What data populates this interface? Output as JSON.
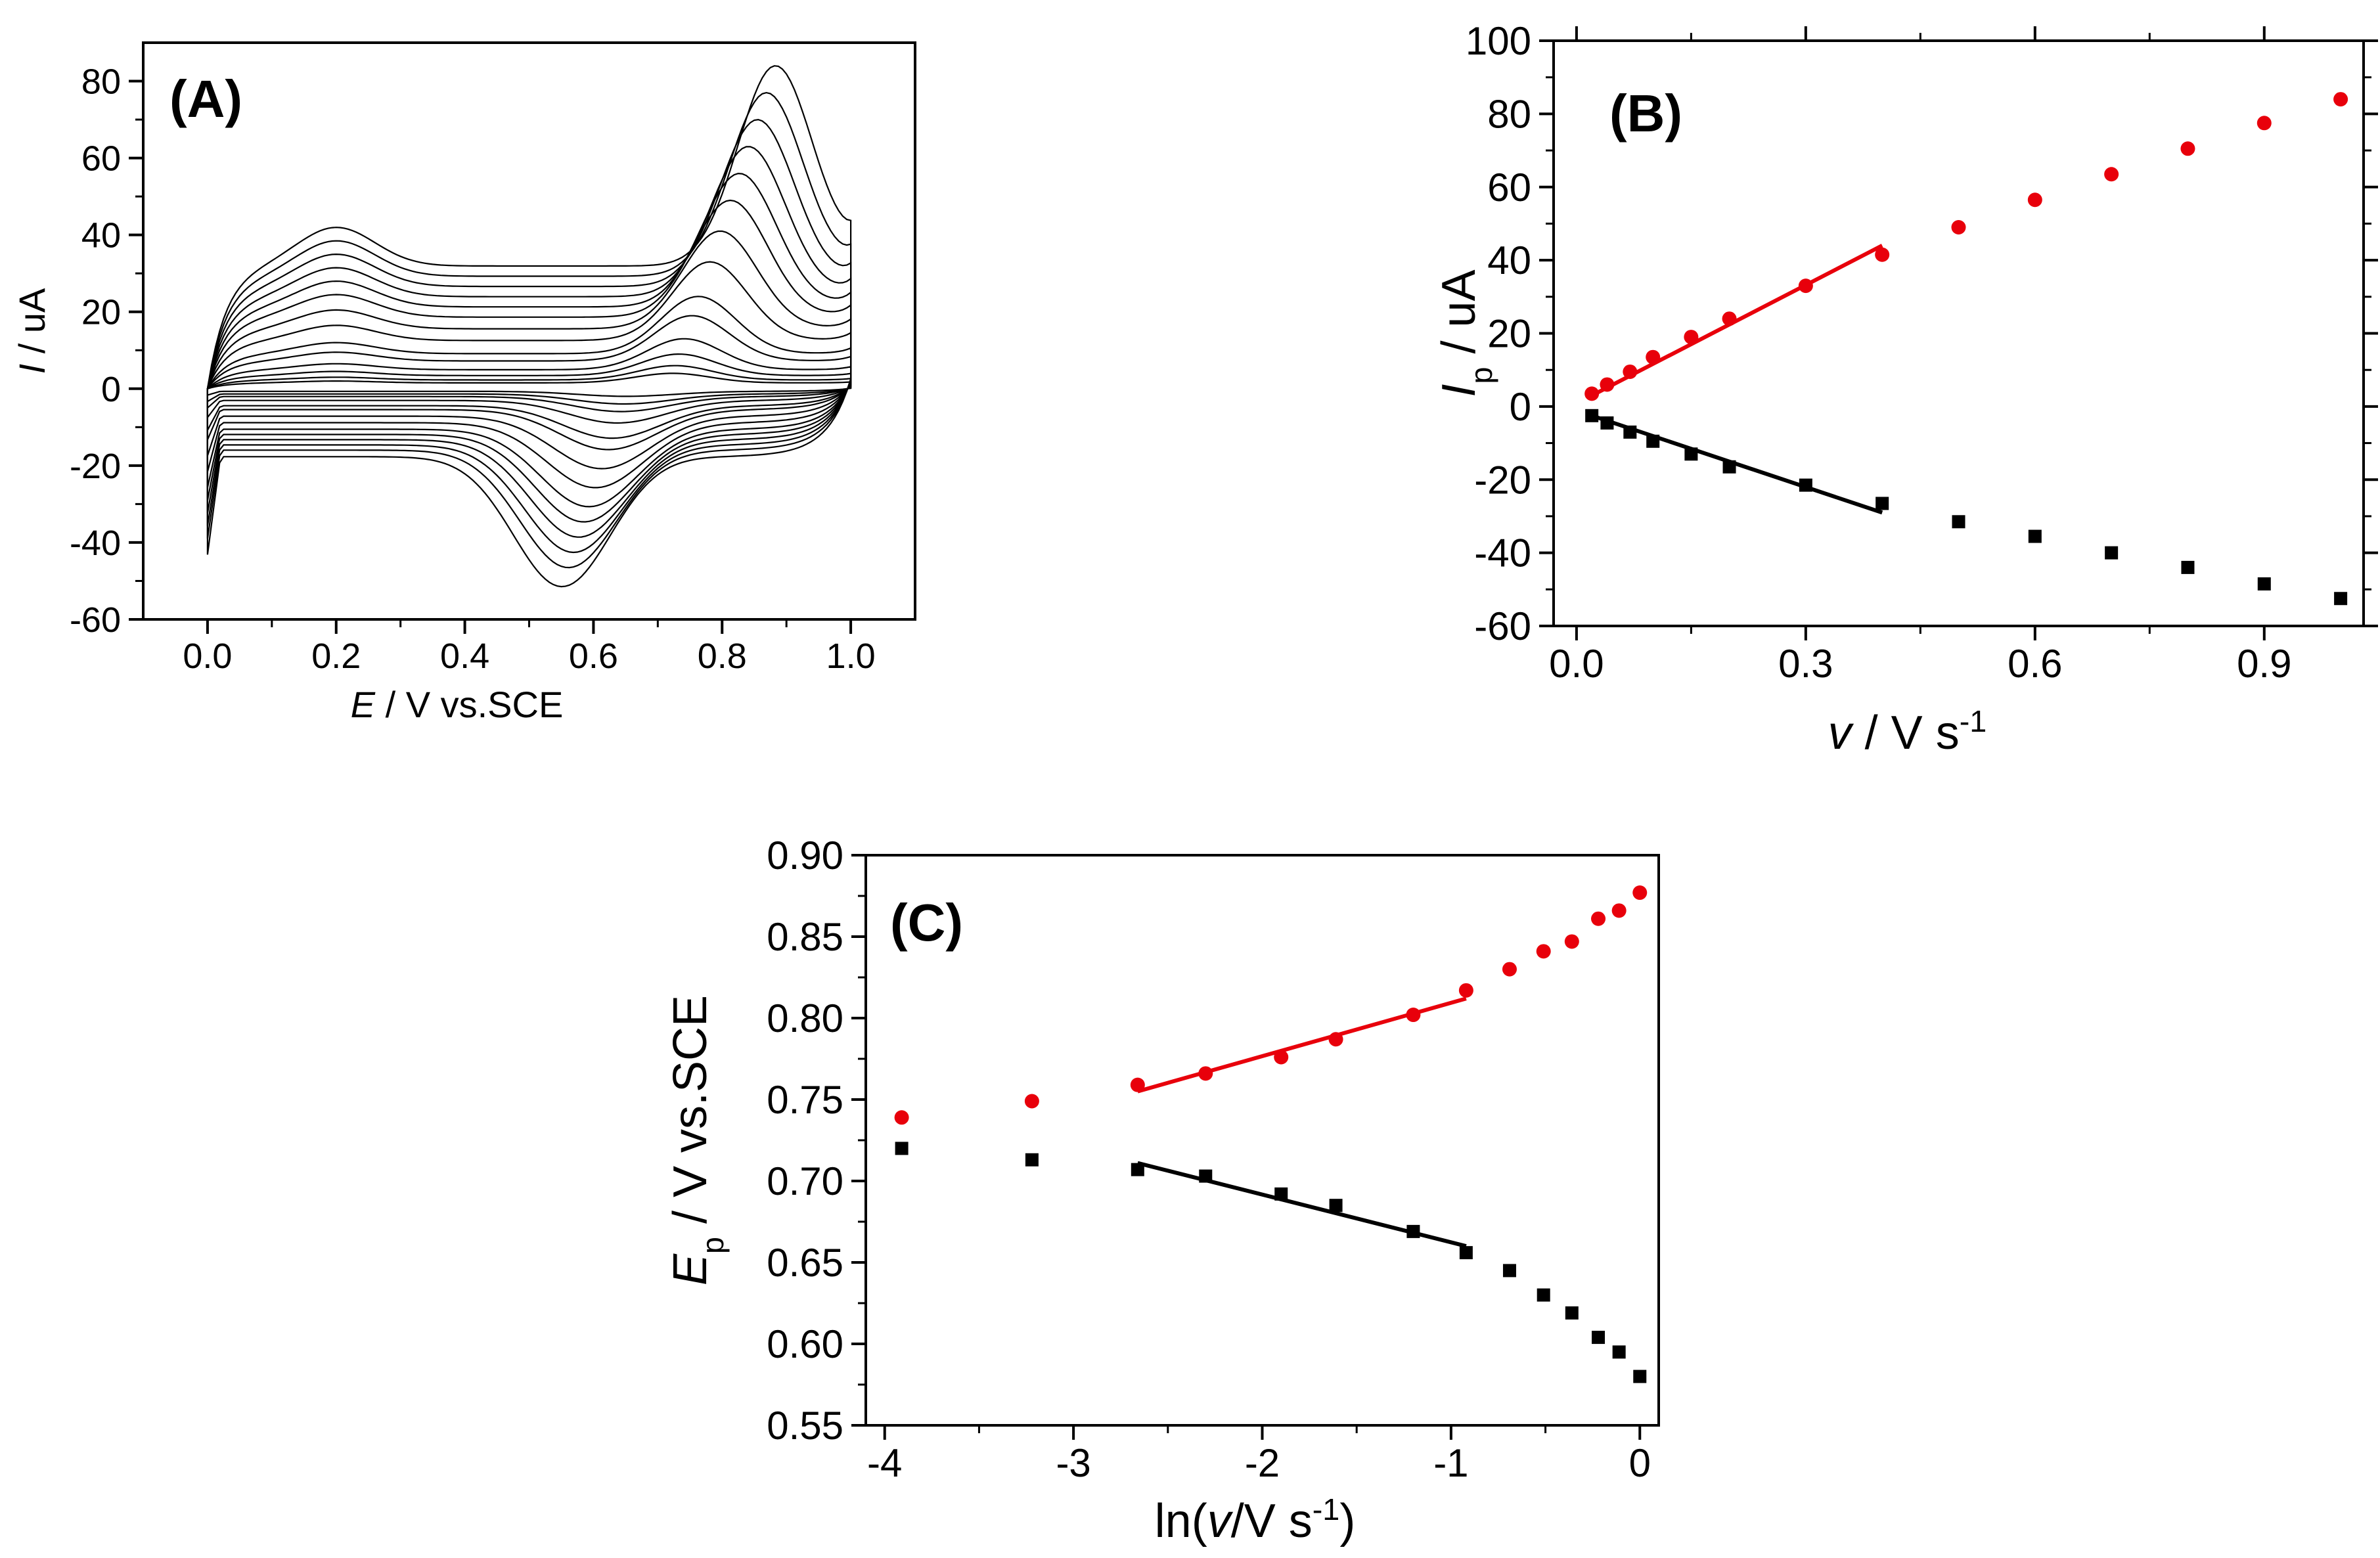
{
  "chart_data": [
    {
      "panel": "A",
      "type": "line",
      "panel_label": "(A)",
      "xlabel": {
        "italic": "E",
        "rest": " / V vs.SCE"
      },
      "ylabel": {
        "italic": "I",
        "rest": " / uA"
      },
      "xlim": [
        -0.1,
        1.1
      ],
      "ylim": [
        -60,
        90
      ],
      "xticks": [
        0.0,
        0.2,
        0.4,
        0.6,
        0.8,
        1.0
      ],
      "xtick_labels": [
        "0.0",
        "0.2",
        "0.4",
        "0.6",
        "0.8",
        "1.0"
      ],
      "yticks": [
        -60,
        -40,
        -20,
        0,
        20,
        40,
        60,
        80
      ],
      "ytick_labels": [
        "-60",
        "-40",
        "-20",
        "0",
        "20",
        "40",
        "60",
        "80"
      ],
      "series": [
        {
          "anodic_peak_current": 4,
          "cathodic_peak_current": -2
        },
        {
          "anodic_peak_current": 6,
          "cathodic_peak_current": -4
        },
        {
          "anodic_peak_current": 9,
          "cathodic_peak_current": -6
        },
        {
          "anodic_peak_current": 13,
          "cathodic_peak_current": -9
        },
        {
          "anodic_peak_current": 19,
          "cathodic_peak_current": -13
        },
        {
          "anodic_peak_current": 24,
          "cathodic_peak_current": -16
        },
        {
          "anodic_peak_current": 33,
          "cathodic_peak_current": -21
        },
        {
          "anodic_peak_current": 41,
          "cathodic_peak_current": -26
        },
        {
          "anodic_peak_current": 49,
          "cathodic_peak_current": -31
        },
        {
          "anodic_peak_current": 56,
          "cathodic_peak_current": -35
        },
        {
          "anodic_peak_current": 63,
          "cathodic_peak_current": -39
        },
        {
          "anodic_peak_current": 70,
          "cathodic_peak_current": -43
        },
        {
          "anodic_peak_current": 77,
          "cathodic_peak_current": -47
        },
        {
          "anodic_peak_current": 84,
          "cathodic_peak_current": -52
        }
      ],
      "color": "#000000"
    },
    {
      "panel": "B",
      "type": "scatter",
      "panel_label": "(B)",
      "xlabel": {
        "italic": "v",
        "rest": " / V s",
        "sup": "-1"
      },
      "ylabel": {
        "italic": "I",
        "sub": "p",
        "rest": " / uA"
      },
      "xlim": [
        -0.03,
        1.03
      ],
      "ylim": [
        -60,
        100
      ],
      "xticks": [
        0.0,
        0.3,
        0.6,
        0.9
      ],
      "xtick_labels": [
        "0.0",
        "0.3",
        "0.6",
        "0.9"
      ],
      "yticks": [
        -60,
        -40,
        -20,
        0,
        20,
        40,
        60,
        80,
        100
      ],
      "ytick_labels": [
        "-60",
        "-40",
        "-20",
        "0",
        "20",
        "40",
        "60",
        "80",
        "100"
      ],
      "series": [
        {
          "marker": "circle",
          "color": "#e8000b",
          "x": [
            0.02,
            0.04,
            0.07,
            0.1,
            0.15,
            0.2,
            0.3,
            0.4,
            0.5,
            0.6,
            0.7,
            0.8,
            0.9,
            1.0
          ],
          "y": [
            3.5,
            6,
            9.5,
            13.5,
            19,
            24,
            33,
            41.5,
            49,
            56.5,
            63.5,
            70.5,
            77.5,
            84
          ],
          "fit": {
            "x": [
              0.02,
              0.4
            ],
            "y": [
              3,
              44
            ]
          }
        },
        {
          "marker": "square",
          "color": "#000000",
          "x": [
            0.02,
            0.04,
            0.07,
            0.1,
            0.15,
            0.2,
            0.3,
            0.4,
            0.5,
            0.6,
            0.7,
            0.8,
            0.9,
            1.0
          ],
          "y": [
            -2.5,
            -4.5,
            -7,
            -9.5,
            -13,
            -16.5,
            -21.5,
            -26.5,
            -31.5,
            -35.5,
            -40,
            -44,
            -48.5,
            -52.5
          ],
          "fit": {
            "x": [
              0.02,
              0.4
            ],
            "y": [
              -2.5,
              -29
            ]
          }
        }
      ]
    },
    {
      "panel": "C",
      "type": "scatter",
      "panel_label": "(C)",
      "xlabel": {
        "pre": "ln(",
        "italic": "v",
        "rest": "/V s",
        "sup": "-1",
        "post": ")"
      },
      "ylabel": {
        "italic": "E",
        "sub": "p",
        "rest": " / V vs.SCE"
      },
      "xlim": [
        -4.1,
        0.1
      ],
      "ylim": [
        0.55,
        0.9
      ],
      "xticks": [
        -4,
        -3,
        -2,
        -1,
        0
      ],
      "xtick_labels": [
        "-4",
        "-3",
        "-2",
        "-1",
        "0"
      ],
      "yticks": [
        0.55,
        0.6,
        0.65,
        0.7,
        0.75,
        0.8,
        0.85,
        0.9
      ],
      "ytick_labels": [
        "0.55",
        "0.60",
        "0.65",
        "0.70",
        "0.75",
        "0.80",
        "0.85",
        "0.90"
      ],
      "series": [
        {
          "marker": "circle",
          "color": "#e8000b",
          "x": [
            -3.91,
            -3.22,
            -2.66,
            -2.3,
            -1.9,
            -1.61,
            -1.2,
            -0.92,
            -0.69,
            -0.51,
            -0.36,
            -0.22,
            -0.11,
            0.0
          ],
          "y": [
            0.739,
            0.749,
            0.759,
            0.766,
            0.776,
            0.787,
            0.802,
            0.817,
            0.83,
            0.841,
            0.847,
            0.861,
            0.866,
            0.877
          ],
          "fit": {
            "x": [
              -2.66,
              -0.92
            ],
            "y": [
              0.755,
              0.812
            ]
          }
        },
        {
          "marker": "square",
          "color": "#000000",
          "x": [
            -3.91,
            -3.22,
            -2.66,
            -2.3,
            -1.9,
            -1.61,
            -1.2,
            -0.92,
            -0.69,
            -0.51,
            -0.36,
            -0.22,
            -0.11,
            0.0
          ],
          "y": [
            0.72,
            0.713,
            0.707,
            0.703,
            0.692,
            0.685,
            0.669,
            0.656,
            0.645,
            0.63,
            0.619,
            0.604,
            0.595,
            0.58
          ],
          "fit": {
            "x": [
              -2.66,
              -0.92
            ],
            "y": [
              0.711,
              0.66
            ]
          }
        }
      ]
    }
  ]
}
